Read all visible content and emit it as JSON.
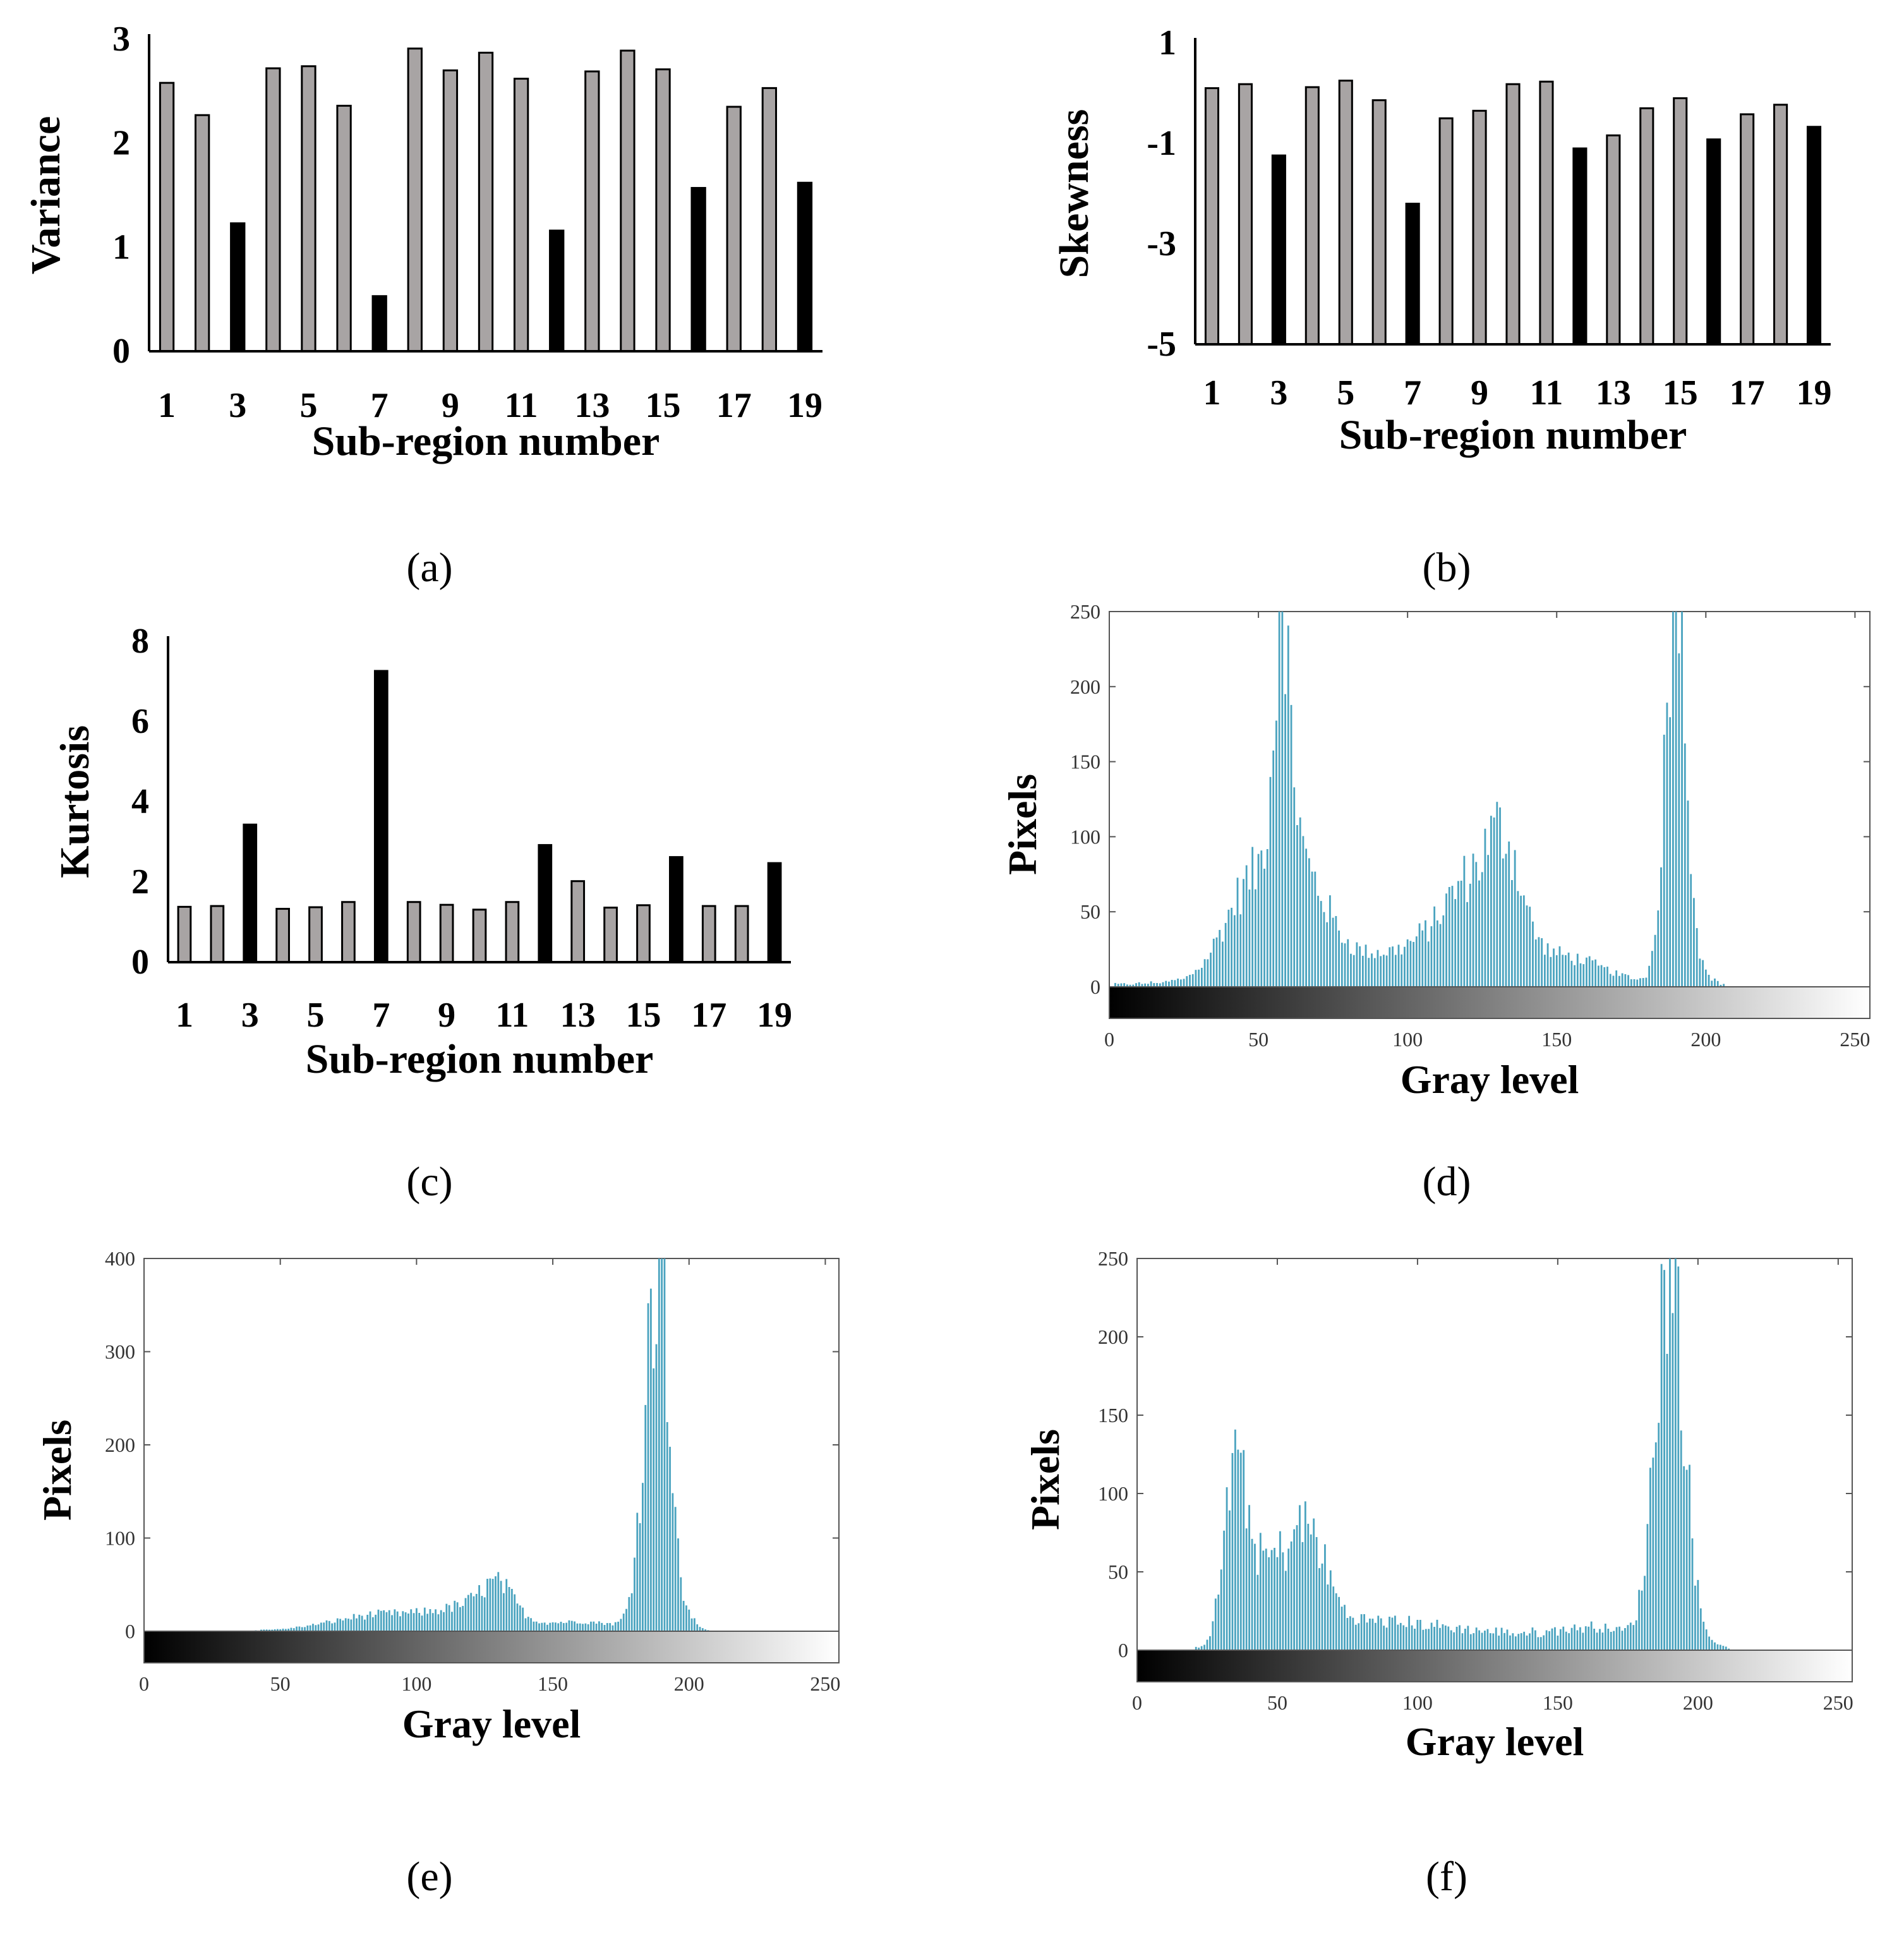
{
  "colors": {
    "normal_bar": "#a8a4a4",
    "anomaly_bar": "#000000",
    "histogram_bar": "#4aa3bf",
    "axis": "#000000"
  },
  "chart_data": [
    {
      "id": "a",
      "type": "bar",
      "caption": "(a)",
      "xlabel": "Sub-region number",
      "ylabel": "Variance",
      "ylim": [
        0,
        3
      ],
      "yticks": [
        "0",
        "1",
        "2",
        "3"
      ],
      "xtick_labels": [
        "1",
        "3",
        "5",
        "7",
        "9",
        "11",
        "13",
        "15",
        "17",
        "19"
      ],
      "categories": [
        1,
        2,
        3,
        4,
        5,
        6,
        7,
        8,
        9,
        10,
        11,
        12,
        13,
        14,
        15,
        16,
        17,
        18,
        19
      ],
      "values": [
        2.58,
        2.27,
        1.23,
        2.72,
        2.74,
        2.36,
        0.53,
        2.91,
        2.7,
        2.87,
        2.62,
        1.16,
        2.69,
        2.89,
        2.71,
        1.57,
        2.35,
        2.53,
        1.62
      ],
      "highlighted": [
        3,
        7,
        12,
        16,
        19
      ]
    },
    {
      "id": "b",
      "type": "bar",
      "caption": "(b)",
      "xlabel": "Sub-region number",
      "ylabel": "Skewness",
      "ylim": [
        -5,
        1
      ],
      "yticks": [
        "-5",
        "-3",
        "-1",
        "1"
      ],
      "xtick_labels": [
        "1",
        "3",
        "5",
        "7",
        "9",
        "11",
        "13",
        "15",
        "17",
        "19"
      ],
      "categories": [
        1,
        2,
        3,
        4,
        5,
        6,
        7,
        8,
        9,
        10,
        11,
        12,
        13,
        14,
        15,
        16,
        17,
        18,
        19
      ],
      "values": [
        0.1,
        0.18,
        -1.24,
        0.12,
        0.25,
        -0.14,
        -2.2,
        -0.5,
        -0.35,
        0.18,
        0.23,
        -1.1,
        -0.84,
        -0.3,
        -0.1,
        -0.92,
        -0.42,
        -0.23,
        -0.67
      ],
      "highlighted": [
        3,
        7,
        12,
        16,
        19
      ]
    },
    {
      "id": "c",
      "type": "bar",
      "caption": "(c)",
      "xlabel": "Sub-region number",
      "ylabel": "Kurtosis",
      "ylim": [
        0,
        8
      ],
      "yticks": [
        "0",
        "2",
        "4",
        "6",
        "8"
      ],
      "xtick_labels": [
        "1",
        "3",
        "5",
        "7",
        "9",
        "11",
        "13",
        "15",
        "17",
        "19"
      ],
      "categories": [
        1,
        2,
        3,
        4,
        5,
        6,
        7,
        8,
        9,
        10,
        11,
        12,
        13,
        14,
        15,
        16,
        17,
        18,
        19
      ],
      "values": [
        1.38,
        1.4,
        3.43,
        1.33,
        1.37,
        1.5,
        7.26,
        1.5,
        1.43,
        1.31,
        1.5,
        2.92,
        2.02,
        1.36,
        1.42,
        2.62,
        1.4,
        1.4,
        2.47
      ],
      "highlighted": [
        3,
        7,
        12,
        16,
        19
      ]
    },
    {
      "id": "d",
      "type": "histogram",
      "caption": "(d)",
      "xlabel": "Gray level",
      "ylabel": "Pixels",
      "xlim": [
        0,
        255
      ],
      "ylim": [
        0,
        250
      ],
      "xticks": [
        "0",
        "50",
        "100",
        "150",
        "200",
        "250"
      ],
      "yticks": [
        "0",
        "50",
        "100",
        "150",
        "200",
        "250"
      ],
      "colorbar": "black-to-white gray scale",
      "peaks": [
        {
          "x": 35,
          "y": 3,
          "w": 4
        },
        {
          "x": 47,
          "y": 55,
          "w": 8
        },
        {
          "x": 58,
          "y": 160,
          "w": 3
        },
        {
          "x": 64,
          "y": 60,
          "w": 8
        },
        {
          "x": 78,
          "y": 22,
          "w": 28
        },
        {
          "x": 113,
          "y": 28,
          "w": 10
        },
        {
          "x": 120,
          "y": 32,
          "w": 6
        },
        {
          "x": 132,
          "y": 85,
          "w": 6
        },
        {
          "x": 150,
          "y": 20,
          "w": 15
        },
        {
          "x": 190,
          "y": 280,
          "w": 3.5
        },
        {
          "x": 200,
          "y": 5,
          "w": 3
        }
      ],
      "baseline": 2,
      "spikes": [
        [
          57,
          250
        ],
        [
          58,
          280
        ],
        [
          59,
          195
        ],
        [
          190,
          300
        ],
        [
          192,
          290
        ]
      ]
    },
    {
      "id": "e",
      "type": "histogram",
      "caption": "(e)",
      "xlabel": "Gray level",
      "ylabel": "Pixels",
      "xlim": [
        0,
        255
      ],
      "ylim": [
        0,
        400
      ],
      "xticks": [
        "0",
        "50",
        "100",
        "150",
        "200",
        "250"
      ],
      "yticks": [
        "0",
        "100",
        "200",
        "300",
        "400"
      ],
      "colorbar": "black-to-white gray scale",
      "peaks": [
        {
          "x": 88,
          "y": 18,
          "w": 18
        },
        {
          "x": 120,
          "y": 22,
          "w": 12
        },
        {
          "x": 130,
          "y": 35,
          "w": 6
        },
        {
          "x": 160,
          "y": 10,
          "w": 15
        },
        {
          "x": 188,
          "y": 380,
          "w": 4.5
        },
        {
          "x": 200,
          "y": 10,
          "w": 3
        }
      ],
      "baseline": 1,
      "spikes": [
        [
          189,
          410
        ],
        [
          191,
          400
        ]
      ]
    },
    {
      "id": "f",
      "type": "histogram",
      "caption": "(f)",
      "xlabel": "Gray level",
      "ylabel": "Pixels",
      "xlim": [
        0,
        255
      ],
      "ylim": [
        0,
        250
      ],
      "xticks": [
        "0",
        "50",
        "100",
        "150",
        "200",
        "250"
      ],
      "yticks": [
        "0",
        "50",
        "100",
        "150",
        "200",
        "250"
      ],
      "colorbar": "black-to-white gray scale",
      "peaks": [
        {
          "x": 35,
          "y": 115,
          "w": 4
        },
        {
          "x": 45,
          "y": 45,
          "w": 6
        },
        {
          "x": 60,
          "y": 70,
          "w": 7
        },
        {
          "x": 80,
          "y": 15,
          "w": 20
        },
        {
          "x": 120,
          "y": 10,
          "w": 25
        },
        {
          "x": 165,
          "y": 12,
          "w": 15
        },
        {
          "x": 190,
          "y": 260,
          "w": 5
        },
        {
          "x": 204,
          "y": 4,
          "w": 3
        }
      ],
      "baseline": 2,
      "spikes": [
        [
          36,
          128
        ],
        [
          190,
          280
        ],
        [
          192,
          275
        ]
      ]
    }
  ]
}
